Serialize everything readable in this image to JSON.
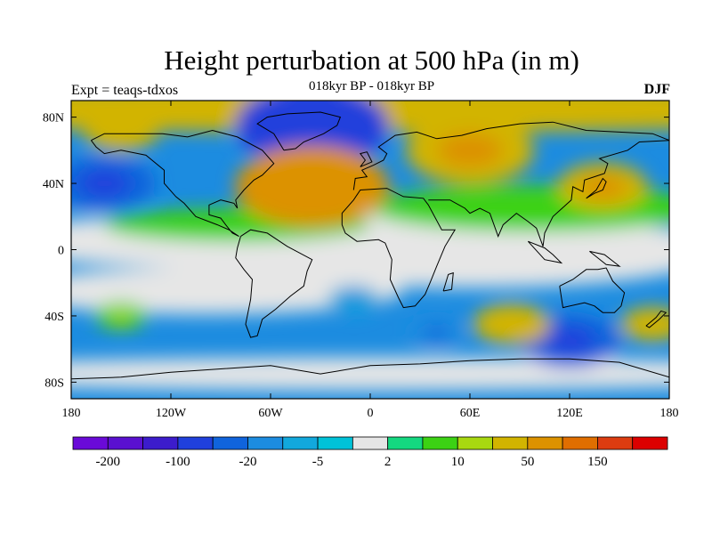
{
  "title": "Height perturbation at 500 hPa (in m)",
  "subtitle": "018kyr BP - 018kyr BP",
  "experiment_label": "Expt = teaqs-tdxos",
  "season": "DJF",
  "chart_data": {
    "type": "heatmap",
    "title": "Height perturbation at 500 hPa (in m)",
    "subtitle": "018kyr BP - 018kyr BP",
    "projection": "cylindrical equidistant",
    "lon_range": [
      -180,
      180
    ],
    "lat_range": [
      -90,
      90
    ],
    "x_ticks": [
      "180",
      "120W",
      "60W",
      "0",
      "60E",
      "120E",
      "180"
    ],
    "y_ticks": [
      "80N",
      "40N",
      "0",
      "40S",
      "80S"
    ],
    "colorbar": {
      "colors": [
        "#6a0ad8",
        "#5a10d0",
        "#3c1ccc",
        "#2040dc",
        "#1064dc",
        "#1c8ce0",
        "#12a8dc",
        "#00c2d8",
        "#e6e6e6",
        "#14d880",
        "#3cd214",
        "#a8d810",
        "#d2b400",
        "#dc9200",
        "#e06e00",
        "#dc3c10",
        "#dc0000"
      ],
      "labels": [
        "-200",
        "-100",
        "-20",
        "-5",
        "2",
        "10",
        "50",
        "150"
      ]
    },
    "features": [
      {
        "lon": -35,
        "lat": 75,
        "value": -60
      },
      {
        "lon": -160,
        "lat": 40,
        "value": -40
      },
      {
        "lon": -35,
        "lat": 38,
        "value": 60
      },
      {
        "lon": 60,
        "lat": 60,
        "value": 50
      },
      {
        "lon": 140,
        "lat": 38,
        "value": 35
      },
      {
        "lon": -150,
        "lat": 72,
        "value": 30
      },
      {
        "lon": 120,
        "lat": -55,
        "value": -40
      },
      {
        "lon": 85,
        "lat": -45,
        "value": 30
      },
      {
        "lon": 40,
        "lat": -50,
        "value": -15
      },
      {
        "lon": -150,
        "lat": -40,
        "value": 10
      },
      {
        "lon": -10,
        "lat": -30,
        "value": -8
      },
      {
        "lon": 170,
        "lat": -45,
        "value": 25
      }
    ]
  }
}
